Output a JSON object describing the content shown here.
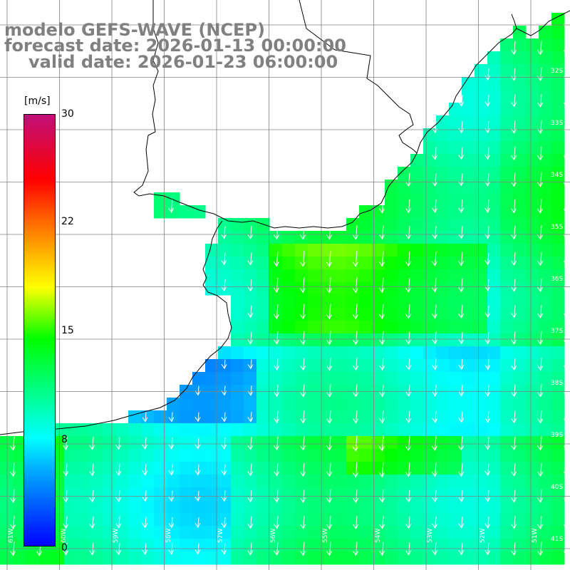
{
  "titles": {
    "line1": "modelo GEFS-WAVE (NCEP)",
    "line2": "forecast date: 2026-01-13 00:00:00",
    "line3": "valid date: 2026-01-23 06:00:00"
  },
  "colorbar": {
    "unit": "[m/s]",
    "ticks": [
      "30",
      "22",
      "15",
      "8",
      "0"
    ],
    "tick_values": [
      30,
      22,
      15,
      8,
      0
    ],
    "range": [
      0,
      30
    ],
    "colors": [
      "#0000ff",
      "#00b0ff",
      "#00ffff",
      "#00ff00",
      "#ffff00",
      "#ff8000",
      "#ff0000",
      "#c0107a"
    ]
  },
  "grid": {
    "lat_labels": [
      "32S",
      "33S",
      "34S",
      "35S",
      "36S",
      "37S",
      "38S",
      "39S",
      "40S",
      "41S"
    ],
    "lon_labels": [
      "61W",
      "60W",
      "59W",
      "58W",
      "57W",
      "56W",
      "55W",
      "54W",
      "53W",
      "52W",
      "51W"
    ],
    "line_color": "#808080"
  },
  "map": {
    "land_color": "#ffffff",
    "coast_color": "#000000",
    "arrow_color": "#ffffff",
    "wind_direction": "from north, blowing south"
  }
}
